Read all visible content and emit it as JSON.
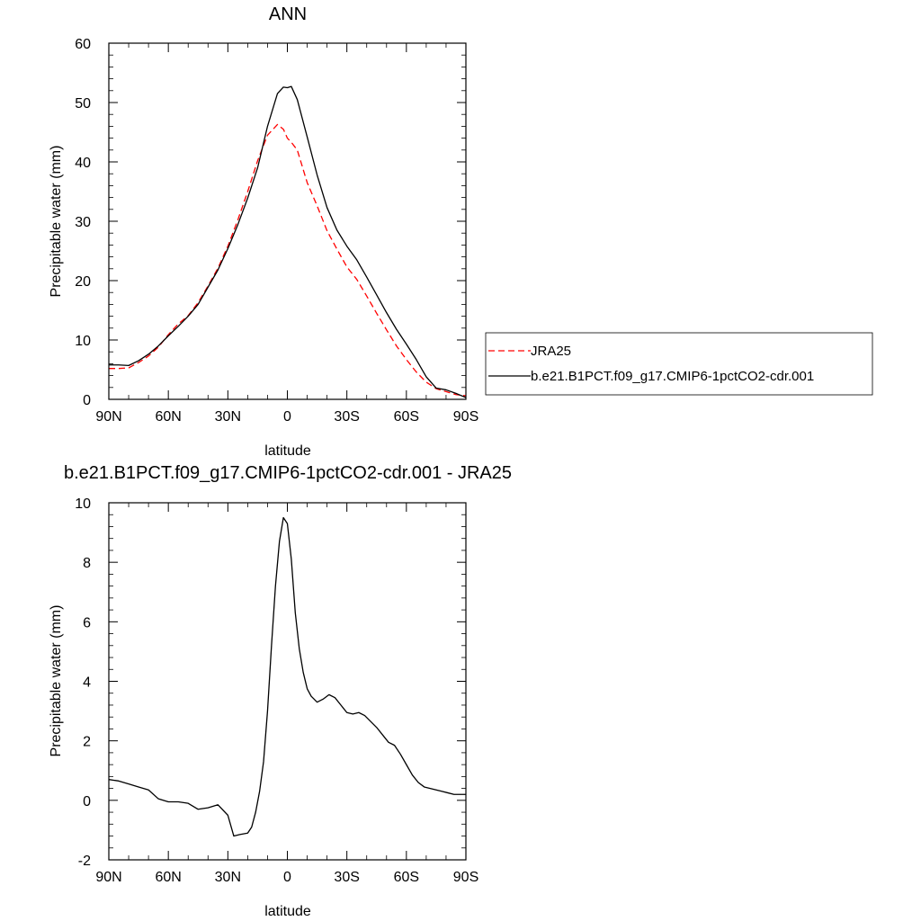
{
  "chart_data": [
    {
      "type": "line",
      "title": "ANN",
      "xlabel": "latitude",
      "ylabel": "Precipitable water (mm)",
      "xlim": [
        -90,
        90
      ],
      "ylim": [
        0,
        60
      ],
      "x_tick_values": [
        -90,
        -60,
        -30,
        0,
        30,
        60,
        90
      ],
      "x_tick_labels": [
        "90N",
        "60N",
        "30N",
        "0",
        "30S",
        "60S",
        "90S"
      ],
      "y_tick_values": [
        0,
        10,
        20,
        30,
        40,
        50,
        60
      ],
      "y_tick_labels": [
        "0",
        "10",
        "20",
        "30",
        "40",
        "50",
        "60"
      ],
      "legend_position": "right",
      "series": [
        {
          "name": "JRA25",
          "color": "#ff0000",
          "dash": "dashed",
          "x": [
            -90,
            -85,
            -80,
            -75,
            -70,
            -65,
            -60,
            -55,
            -50,
            -45,
            -40,
            -35,
            -30,
            -25,
            -20,
            -15,
            -10,
            -5,
            -2,
            0,
            2,
            5,
            10,
            15,
            20,
            25,
            30,
            35,
            40,
            45,
            50,
            55,
            60,
            65,
            70,
            75,
            80,
            85,
            90
          ],
          "y": [
            5.2,
            5.2,
            5.3,
            6.2,
            7.3,
            8.8,
            10.9,
            12.7,
            14.1,
            16.3,
            19.1,
            22.1,
            25.8,
            30.2,
            35.0,
            40.2,
            44.5,
            46.3,
            45.5,
            44.0,
            43.3,
            42.0,
            36.5,
            32.6,
            28.4,
            25.3,
            22.3,
            20.2,
            17.4,
            14.5,
            11.7,
            9.0,
            6.7,
            4.6,
            2.9,
            1.8,
            1.3,
            0.8,
            0.6
          ]
        },
        {
          "name": "b.e21.B1PCT.f09_g17.CMIP6-1pctCO2-cdr.001",
          "color": "#000000",
          "dash": "solid",
          "x": [
            -90,
            -85,
            -80,
            -75,
            -70,
            -65,
            -60,
            -55,
            -50,
            -45,
            -40,
            -35,
            -30,
            -25,
            -20,
            -15,
            -10,
            -5,
            -2,
            0,
            2,
            5,
            10,
            15,
            20,
            25,
            30,
            35,
            40,
            45,
            50,
            55,
            60,
            65,
            70,
            75,
            80,
            85,
            90
          ],
          "y": [
            5.8,
            5.8,
            5.7,
            6.5,
            7.6,
            9.0,
            10.7,
            12.3,
            14.0,
            16.0,
            18.9,
            21.8,
            25.4,
            29.4,
            33.9,
            39.0,
            46.0,
            51.5,
            52.6,
            52.5,
            52.7,
            50.5,
            44.2,
            37.8,
            32.3,
            28.5,
            25.8,
            23.5,
            20.6,
            17.6,
            14.6,
            11.8,
            9.3,
            6.7,
            3.8,
            1.9,
            1.6,
            1.0,
            0.3
          ]
        }
      ]
    },
    {
      "type": "line",
      "title": "b.e21.B1PCT.f09_g17.CMIP6-1pctCO2-cdr.001 - JRA25",
      "xlabel": "latitude",
      "ylabel": "Precipitable water (mm)",
      "xlim": [
        -90,
        90
      ],
      "ylim": [
        -2,
        10
      ],
      "x_tick_values": [
        -90,
        -60,
        -30,
        0,
        30,
        60,
        90
      ],
      "x_tick_labels": [
        "90N",
        "60N",
        "30N",
        "0",
        "30S",
        "60S",
        "90S"
      ],
      "y_tick_values": [
        -2,
        0,
        2,
        4,
        6,
        8,
        10
      ],
      "y_tick_labels": [
        "-2",
        "0",
        "2",
        "4",
        "6",
        "8",
        "10"
      ],
      "series": [
        {
          "color": "#000000",
          "dash": "solid",
          "x": [
            -90,
            -85,
            -80,
            -75,
            -70,
            -65,
            -60,
            -55,
            -50,
            -45,
            -40,
            -35,
            -30,
            -27,
            -24,
            -20,
            -18,
            -16,
            -14,
            -12,
            -10,
            -8,
            -6,
            -4,
            -2,
            0,
            2,
            4,
            6,
            8,
            10,
            12,
            15,
            18,
            21,
            24,
            27,
            30,
            33,
            36,
            39,
            42,
            45,
            48,
            51,
            54,
            57,
            60,
            63,
            66,
            69,
            72,
            75,
            78,
            81,
            84,
            87,
            90
          ],
          "y": [
            0.7,
            0.65,
            0.55,
            0.45,
            0.35,
            0.05,
            -0.05,
            -0.05,
            -0.1,
            -0.3,
            -0.25,
            -0.15,
            -0.5,
            -1.2,
            -1.15,
            -1.1,
            -0.9,
            -0.4,
            0.3,
            1.3,
            3.0,
            5.2,
            7.2,
            8.7,
            9.5,
            9.3,
            8.1,
            6.3,
            5.1,
            4.3,
            3.75,
            3.5,
            3.3,
            3.4,
            3.55,
            3.45,
            3.2,
            2.95,
            2.9,
            2.95,
            2.85,
            2.65,
            2.45,
            2.2,
            1.95,
            1.85,
            1.55,
            1.2,
            0.85,
            0.6,
            0.45,
            0.4,
            0.35,
            0.3,
            0.25,
            0.2,
            0.2,
            0.2
          ]
        }
      ]
    }
  ]
}
